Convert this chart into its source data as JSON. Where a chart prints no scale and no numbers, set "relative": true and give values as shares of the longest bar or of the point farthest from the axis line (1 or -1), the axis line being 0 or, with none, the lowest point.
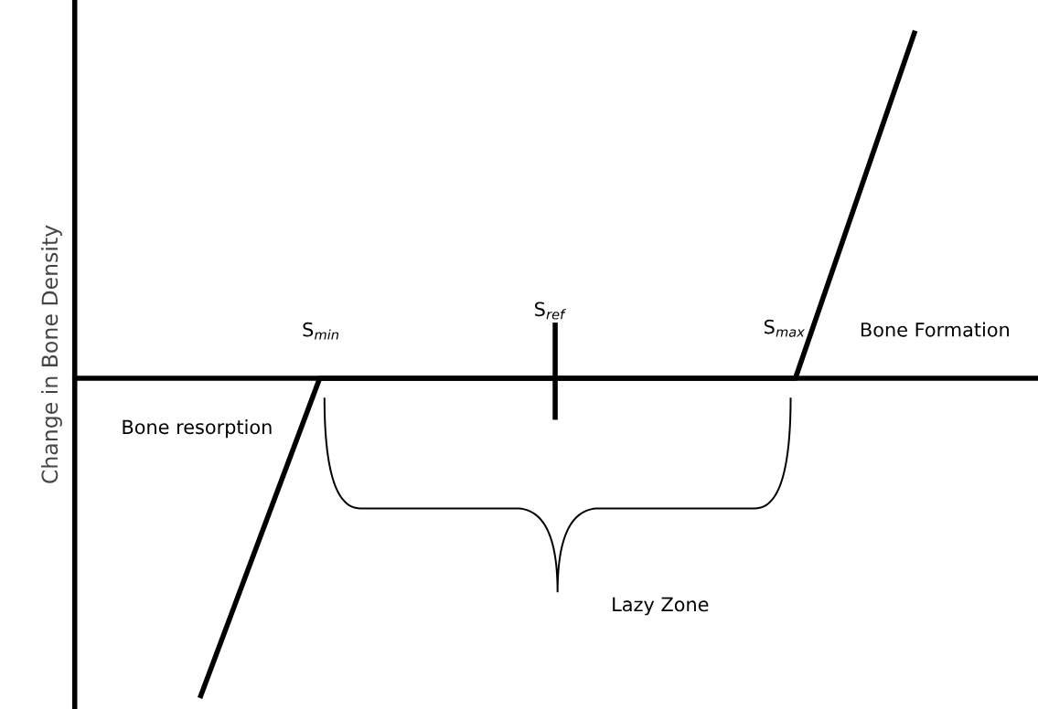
{
  "chart_data": {
    "type": "line",
    "relative": true,
    "ylabel": "Change in Bone Density",
    "categories": [
      null,
      null,
      null,
      null,
      null,
      null,
      null
    ],
    "series": [
      {
        "color": "#000000",
        "values": [
          -0.92,
          0,
          0,
          0,
          0,
          0,
          1
        ]
      }
    ],
    "marker": "none",
    "line_style": "solid",
    "legend": false,
    "annotations": [
      "S$_{min}$",
      "S$_{ref}$",
      "S$_{max}$",
      "Bone Formation",
      "Bone resorption",
      "Lazy Zone"
    ]
  }
}
